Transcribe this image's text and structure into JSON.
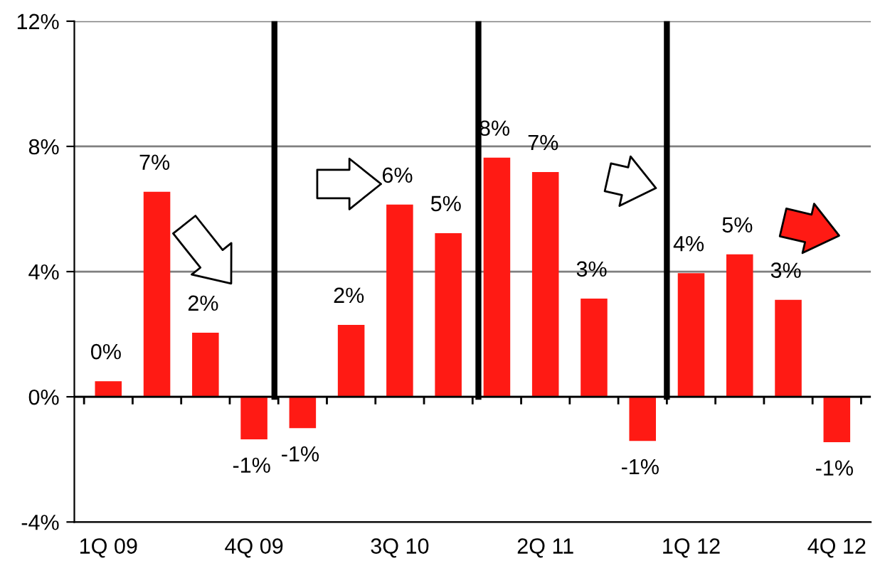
{
  "chart_data": {
    "type": "bar",
    "categories": [
      "1Q 09",
      null,
      null,
      "4Q 09",
      null,
      null,
      "3Q 10",
      null,
      null,
      "2Q 11",
      null,
      null,
      "1Q 12",
      null,
      null,
      "4Q 12"
    ],
    "values": [
      0.5,
      6.55,
      2.05,
      -1.36,
      -1.0,
      2.3,
      6.14,
      5.23,
      7.64,
      7.18,
      3.14,
      -1.41,
      3.95,
      4.55,
      3.1,
      -1.45
    ],
    "value_labels": [
      "0%",
      "7%",
      "2%",
      "-1%",
      "-1%",
      "2%",
      "6%",
      "5%",
      "8%",
      "7%",
      "3%",
      "-1%",
      "4%",
      "5%",
      "3%",
      "-1%"
    ],
    "color": "#ff1a14",
    "ylim": [
      -4,
      12
    ],
    "yticks": [
      {
        "value": -4,
        "label": "-4%"
      },
      {
        "value": 0,
        "label": "0%"
      },
      {
        "value": 4,
        "label": "4%"
      },
      {
        "value": 8,
        "label": "8%"
      },
      {
        "value": 12,
        "label": "12%"
      }
    ],
    "grid": "y"
  }
}
